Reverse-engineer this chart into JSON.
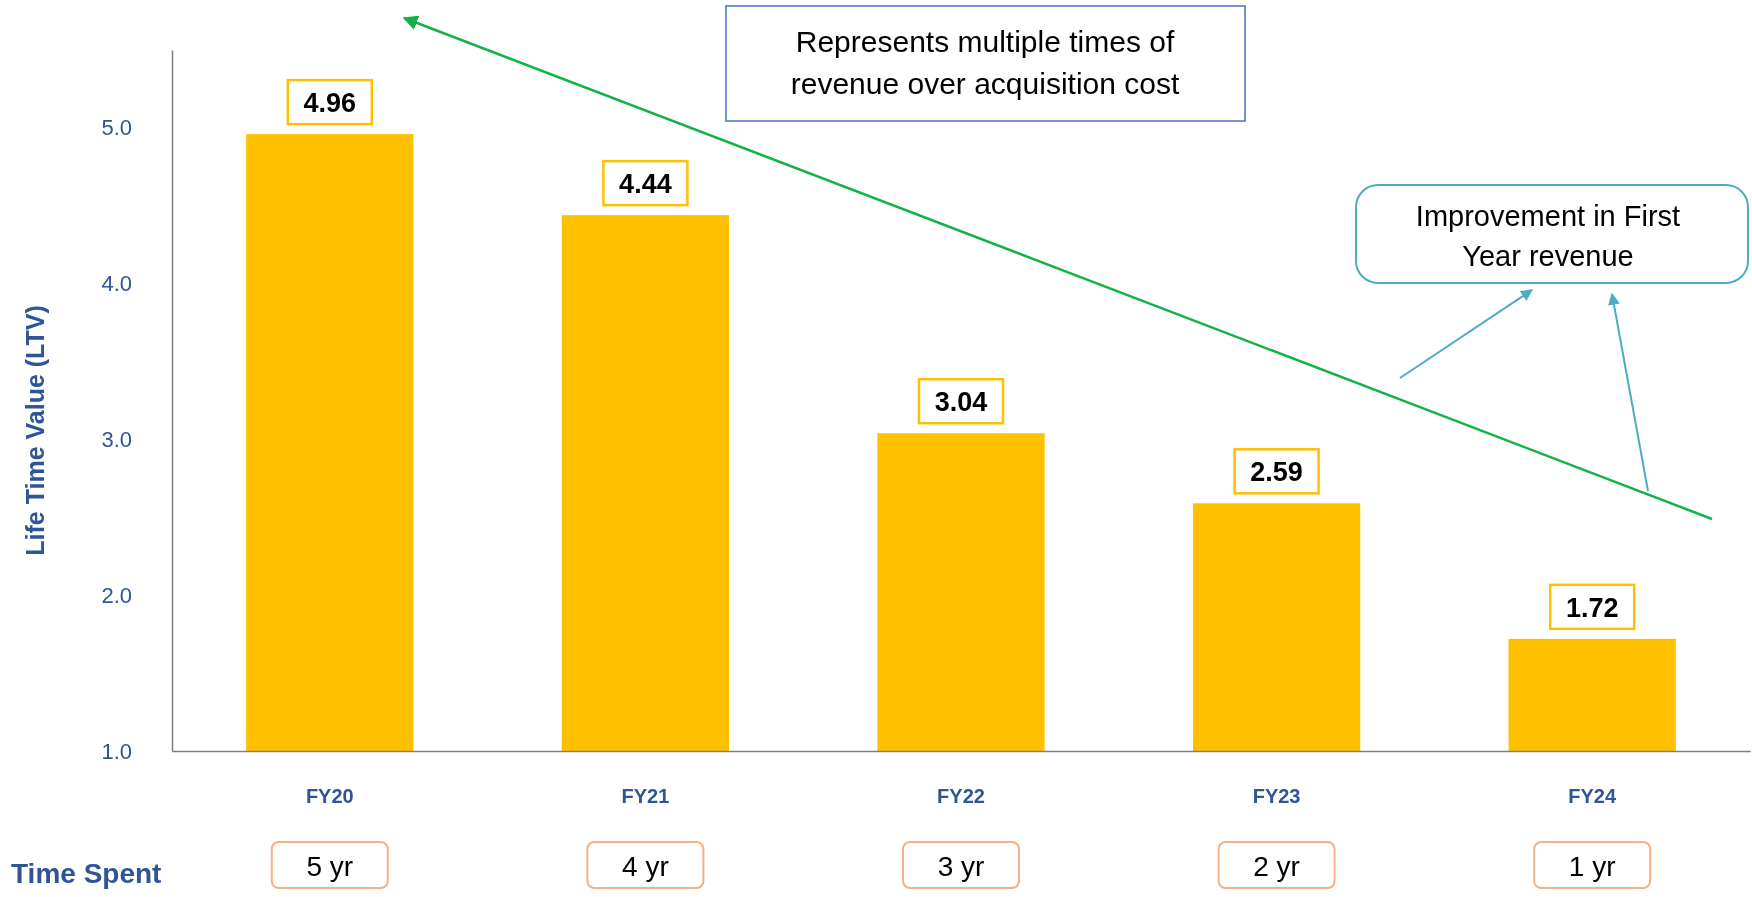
{
  "chart_data": {
    "type": "bar",
    "ylabel": "Life Time Value (LTV)",
    "categories": [
      "FY20",
      "FY21",
      "FY22",
      "FY23",
      "FY24"
    ],
    "values": [
      4.96,
      4.44,
      3.04,
      2.59,
      1.72
    ],
    "color": "#ffc000",
    "ylim": [
      1,
      5.5
    ],
    "yticks": [
      {
        "value": 1,
        "label": "1.0"
      },
      {
        "value": 2,
        "label": "2.0"
      },
      {
        "value": 3,
        "label": "3.0"
      },
      {
        "value": 4,
        "label": "4.0"
      },
      {
        "value": 5,
        "label": "5.0"
      }
    ],
    "data_labels": true,
    "grid": false,
    "annotations": [
      "Represents multiple times of revenue over acquisition cost",
      "Improvement in First Year revenue",
      "Time Spent",
      "5 yr",
      "4 yr",
      "3 yr",
      "2 yr",
      "1 yr"
    ]
  }
}
